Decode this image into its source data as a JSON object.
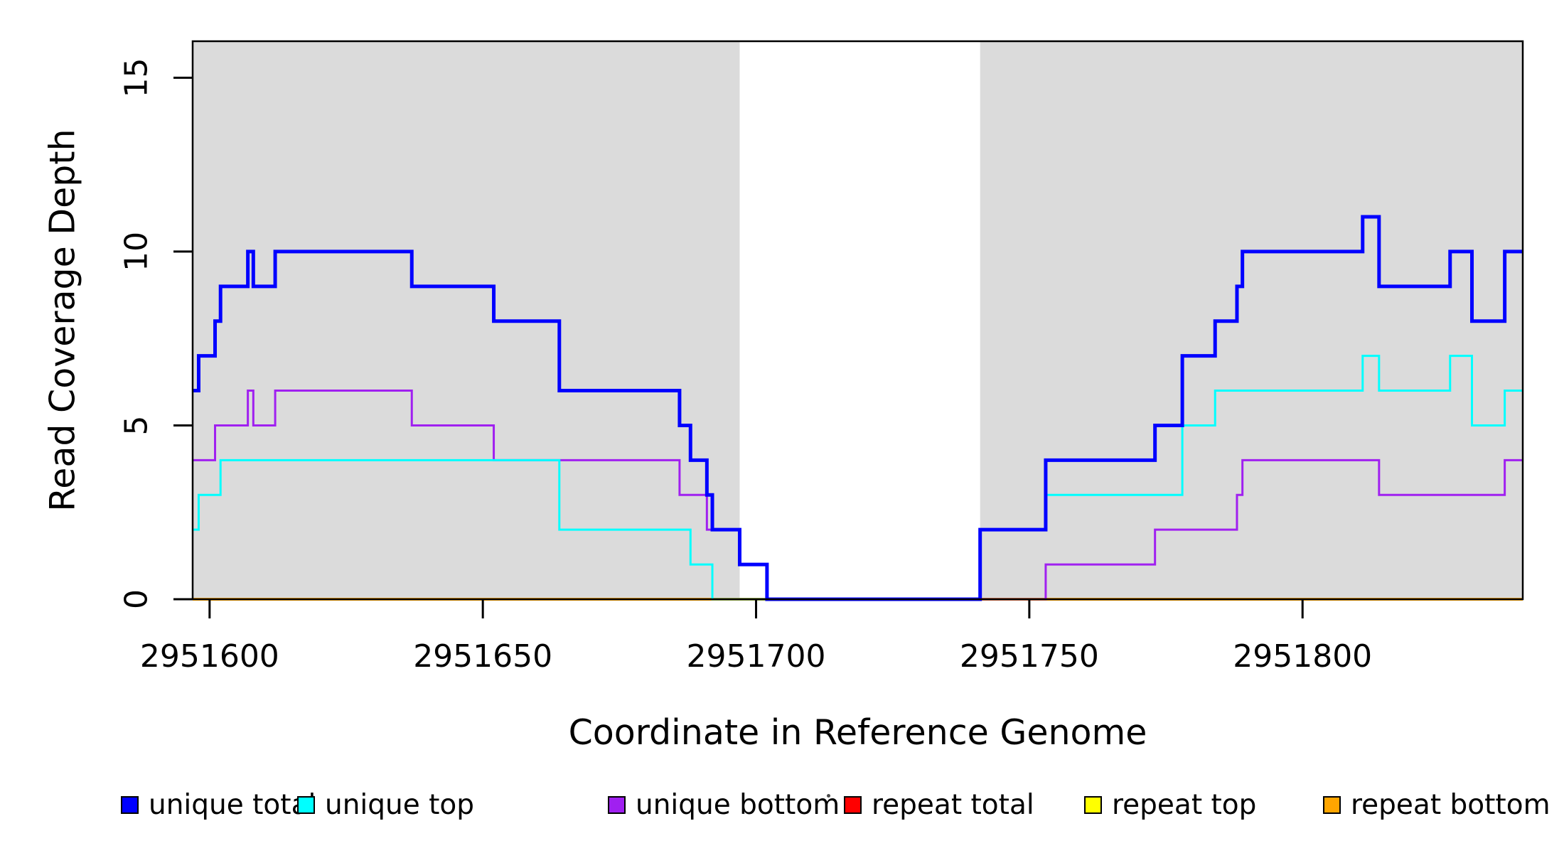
{
  "figure": {
    "background": "#FFFFFF"
  },
  "axes": {
    "x_label": "Coordinate in Reference Genome",
    "y_label": "Read Coverage Depth",
    "x_ticks": [
      {
        "value": 2951600,
        "label": "2951600"
      },
      {
        "value": 2951650,
        "label": "2951650"
      },
      {
        "value": 2951700,
        "label": "2951700"
      },
      {
        "value": 2951750,
        "label": "2951750"
      },
      {
        "value": 2951800,
        "label": "2951800"
      }
    ],
    "y_ticks": [
      {
        "value": 0,
        "label": "0"
      },
      {
        "value": 5,
        "label": "5"
      },
      {
        "value": 10,
        "label": "10"
      },
      {
        "value": 15,
        "label": "15"
      }
    ]
  },
  "legend": {
    "items": [
      {
        "label": "unique total",
        "color": "#0000FF"
      },
      {
        "label": "unique top",
        "color": "#00FFFF"
      },
      {
        "label": "unique bottom",
        "color": "#A020F0"
      },
      {
        "label": "repeat total",
        "color": "#FF0000"
      },
      {
        "label": "repeat top",
        "color": "#FFFF00"
      },
      {
        "label": "repeat bottom",
        "color": "#FFA500"
      }
    ]
  },
  "chart_data": {
    "type": "line",
    "subtype": "step",
    "title": "",
    "xlabel": "Coordinate in Reference Genome",
    "ylabel": "Read Coverage Depth",
    "xlim": [
      2951596.9,
      2951840.3
    ],
    "ylim": [
      0,
      16.05
    ],
    "grid": false,
    "legend_position": "bottom",
    "band_color": "#DBDBDB",
    "shaded_regions": [
      [
        2951596.9,
        2951697
      ],
      [
        2951741,
        2951840.3
      ]
    ],
    "series": [
      {
        "name": "unique total",
        "color": "#0000FF",
        "width": 5,
        "zorder": 6,
        "points": [
          [
            2951596.9,
            6
          ],
          [
            2951598,
            7
          ],
          [
            2951601,
            8
          ],
          [
            2951602,
            9
          ],
          [
            2951607,
            10
          ],
          [
            2951608,
            9
          ],
          [
            2951612,
            10
          ],
          [
            2951637,
            9
          ],
          [
            2951652,
            8
          ],
          [
            2951664,
            6
          ],
          [
            2951686,
            5
          ],
          [
            2951688,
            4
          ],
          [
            2951691,
            3
          ],
          [
            2951692,
            2
          ],
          [
            2951697,
            1
          ],
          [
            2951702,
            0
          ],
          [
            2951741,
            2
          ],
          [
            2951753,
            4
          ],
          [
            2951773,
            5
          ],
          [
            2951778,
            7
          ],
          [
            2951784,
            8
          ],
          [
            2951788,
            9
          ],
          [
            2951789,
            10
          ],
          [
            2951811,
            11
          ],
          [
            2951814,
            9
          ],
          [
            2951827,
            10
          ],
          [
            2951831,
            8
          ],
          [
            2951837,
            10
          ]
        ]
      },
      {
        "name": "unique top",
        "color": "#00FFFF",
        "width": 3,
        "zorder": 5,
        "points": [
          [
            2951596.9,
            2
          ],
          [
            2951598,
            3
          ],
          [
            2951602,
            4
          ],
          [
            2951664,
            2
          ],
          [
            2951688,
            1
          ],
          [
            2951692,
            0
          ],
          [
            2951741,
            2
          ],
          [
            2951753,
            3
          ],
          [
            2951778,
            5
          ],
          [
            2951784,
            6
          ],
          [
            2951811,
            7
          ],
          [
            2951814,
            6
          ],
          [
            2951827,
            7
          ],
          [
            2951831,
            5
          ],
          [
            2951837,
            6
          ]
        ]
      },
      {
        "name": "unique bottom",
        "color": "#A020F0",
        "width": 3,
        "zorder": 4,
        "points": [
          [
            2951596.9,
            4
          ],
          [
            2951601,
            5
          ],
          [
            2951607,
            6
          ],
          [
            2951608,
            5
          ],
          [
            2951612,
            6
          ],
          [
            2951637,
            5
          ],
          [
            2951652,
            4
          ],
          [
            2951686,
            3
          ],
          [
            2951691,
            2
          ],
          [
            2951697,
            1
          ],
          [
            2951702,
            0
          ],
          [
            2951753,
            1
          ],
          [
            2951773,
            2
          ],
          [
            2951788,
            3
          ],
          [
            2951789,
            4
          ],
          [
            2951814,
            3
          ],
          [
            2951837,
            4
          ]
        ]
      },
      {
        "name": "repeat total",
        "color": "#FF0000",
        "width": 3,
        "zorder": 1,
        "points": [
          [
            2951596.9,
            0
          ]
        ]
      },
      {
        "name": "repeat top",
        "color": "#FFFF00",
        "width": 3,
        "zorder": 2,
        "points": [
          [
            2951596.9,
            0
          ]
        ]
      },
      {
        "name": "repeat bottom",
        "color": "#FFA500",
        "width": 4,
        "zorder": 3,
        "points": [
          [
            2951596.9,
            0
          ]
        ]
      }
    ]
  }
}
